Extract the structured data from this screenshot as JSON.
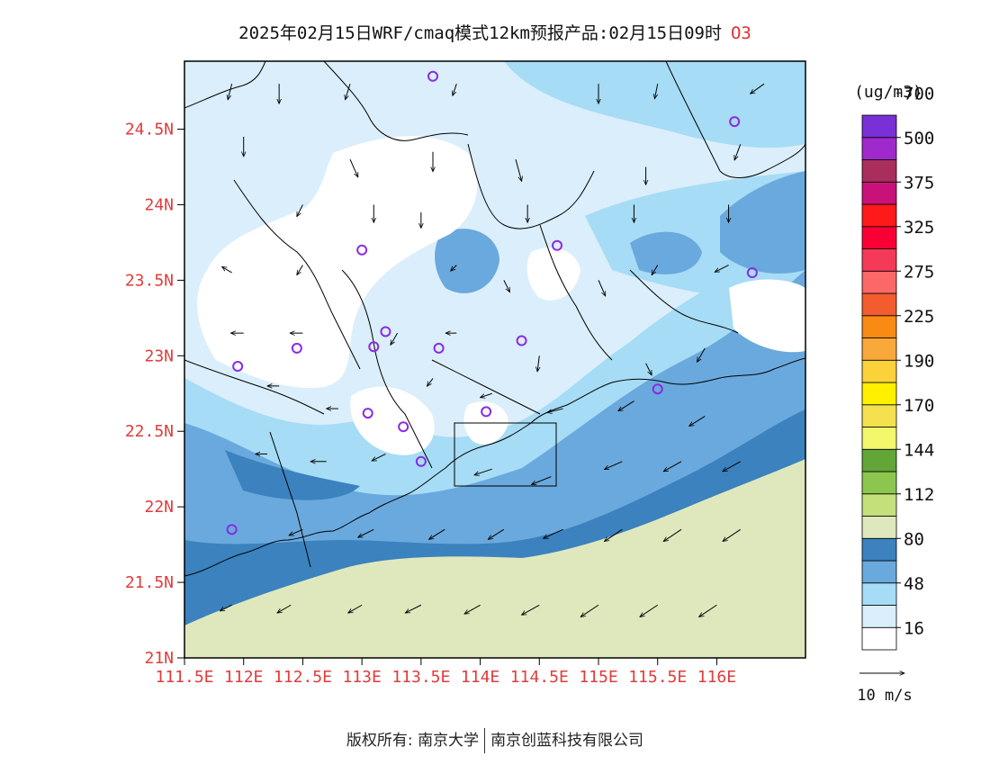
{
  "header": {
    "title": "2025年02月15日WRF/cmaq模式12km预报产品:02月15日09时",
    "pollutant": "O3"
  },
  "map": {
    "lon_range": [
      111.5,
      116.75
    ],
    "lat_range": [
      21,
      24.95
    ],
    "lat_ticks": [
      "21N",
      "21.5N",
      "22N",
      "22.5N",
      "23N",
      "23.5N",
      "24N",
      "24.5N"
    ],
    "lon_ticks": [
      "111.5E",
      "112E",
      "112.5E",
      "113E",
      "113.5E",
      "114E",
      "114.5E",
      "115E",
      "115.5E",
      "116E"
    ],
    "tick_label_color": "#e03c3c",
    "sea_color": "#dfe8bd",
    "station_marker_color": "#8a2be2",
    "stations": [
      [
        113.6,
        24.85
      ],
      [
        116.15,
        24.55
      ],
      [
        114.65,
        23.73
      ],
      [
        116.3,
        23.55
      ],
      [
        113.0,
        23.7
      ],
      [
        112.45,
        23.05
      ],
      [
        113.1,
        23.06
      ],
      [
        113.2,
        23.16
      ],
      [
        113.65,
        23.05
      ],
      [
        114.35,
        23.1
      ],
      [
        111.95,
        22.93
      ],
      [
        115.5,
        22.78
      ],
      [
        113.05,
        22.62
      ],
      [
        113.35,
        22.53
      ],
      [
        114.05,
        22.63
      ],
      [
        113.5,
        22.3
      ],
      [
        111.9,
        21.85
      ]
    ],
    "wind_vectors": [
      [
        111.9,
        24.8,
        -0.4,
        -1.6
      ],
      [
        112.3,
        24.8,
        0,
        -2
      ],
      [
        112.9,
        24.8,
        -0.5,
        -1.6
      ],
      [
        113.8,
        24.8,
        -0.4,
        -1.2
      ],
      [
        115.0,
        24.8,
        0,
        -2
      ],
      [
        115.5,
        24.8,
        -0.3,
        -1.5
      ],
      [
        116.4,
        24.8,
        -1.4,
        -1.0
      ],
      [
        112.0,
        24.45,
        0,
        -2
      ],
      [
        112.9,
        24.3,
        0.8,
        -1.8
      ],
      [
        113.6,
        24.35,
        0,
        -2
      ],
      [
        114.3,
        24.3,
        0.6,
        -2.2
      ],
      [
        115.4,
        24.25,
        0,
        -1.8
      ],
      [
        116.2,
        24.4,
        -0.6,
        -1.6
      ],
      [
        112.5,
        24.0,
        -0.6,
        -1.2
      ],
      [
        113.1,
        24.0,
        0,
        -1.8
      ],
      [
        113.5,
        23.95,
        0,
        -1.6
      ],
      [
        114.4,
        24.0,
        0,
        -1.8
      ],
      [
        115.3,
        24.0,
        0,
        -1.8
      ],
      [
        116.1,
        24.0,
        0,
        -1.8
      ],
      [
        111.9,
        23.55,
        -1,
        0.6
      ],
      [
        112.5,
        23.6,
        -0.6,
        -1.0
      ],
      [
        113.8,
        23.6,
        -0.6,
        -0.6
      ],
      [
        114.2,
        23.5,
        0.6,
        -1.2
      ],
      [
        115.0,
        23.5,
        0.7,
        -1.6
      ],
      [
        115.5,
        23.6,
        -0.6,
        -1.0
      ],
      [
        116.1,
        23.6,
        -1.4,
        -0.7
      ],
      [
        112.0,
        23.15,
        -1.3,
        0
      ],
      [
        112.5,
        23.15,
        -1.3,
        0
      ],
      [
        113.3,
        23.15,
        -0.7,
        -1.2
      ],
      [
        113.8,
        23.15,
        -1.1,
        0
      ],
      [
        114.5,
        23.0,
        -0.2,
        -1.6
      ],
      [
        115.4,
        22.95,
        0.6,
        -1.2
      ],
      [
        115.9,
        23.05,
        -0.8,
        -1.4
      ],
      [
        112.3,
        22.8,
        -1.2,
        0
      ],
      [
        112.8,
        22.65,
        -1.2,
        0
      ],
      [
        113.6,
        22.85,
        -0.6,
        -0.8
      ],
      [
        114.1,
        22.75,
        -1.2,
        -0.4
      ],
      [
        114.7,
        22.65,
        -1.6,
        -0.4
      ],
      [
        115.3,
        22.7,
        -1.6,
        -1.0
      ],
      [
        115.9,
        22.6,
        -1.6,
        -1.0
      ],
      [
        112.2,
        22.35,
        -1.2,
        0
      ],
      [
        112.7,
        22.3,
        -1.6,
        0
      ],
      [
        113.2,
        22.35,
        -1.4,
        -0.7
      ],
      [
        114.1,
        22.25,
        -1.8,
        -0.6
      ],
      [
        114.6,
        22.2,
        -2,
        -0.8
      ],
      [
        115.2,
        22.3,
        -1.8,
        -0.8
      ],
      [
        115.7,
        22.3,
        -1.8,
        -1.0
      ],
      [
        116.2,
        22.3,
        -1.8,
        -1.0
      ],
      [
        112.5,
        21.85,
        -1.4,
        -0.6
      ],
      [
        113.1,
        21.85,
        -1.6,
        -0.8
      ],
      [
        113.7,
        21.85,
        -1.6,
        -1.0
      ],
      [
        114.2,
        21.85,
        -1.6,
        -1.0
      ],
      [
        114.7,
        21.85,
        -2,
        -0.9
      ],
      [
        115.2,
        21.85,
        -1.8,
        -1.2
      ],
      [
        115.7,
        21.85,
        -1.8,
        -1.2
      ],
      [
        116.2,
        21.85,
        -1.8,
        -1.2
      ],
      [
        111.9,
        21.35,
        -1.2,
        -0.6
      ],
      [
        112.4,
        21.35,
        -1.4,
        -0.8
      ],
      [
        113.0,
        21.35,
        -1.4,
        -0.8
      ],
      [
        113.5,
        21.35,
        -1.6,
        -0.8
      ],
      [
        114.0,
        21.35,
        -1.6,
        -0.9
      ],
      [
        114.5,
        21.35,
        -1.8,
        -1.0
      ],
      [
        115.0,
        21.35,
        -1.8,
        -1.2
      ],
      [
        115.5,
        21.35,
        -1.8,
        -1.2
      ],
      [
        116.0,
        21.35,
        -1.8,
        -1.2
      ]
    ]
  },
  "legend": {
    "unit": "(ug/m3)",
    "labels": [
      "16",
      "48",
      "80",
      "112",
      "144",
      "170",
      "190",
      "225",
      "275",
      "325",
      "375",
      "500",
      "700"
    ],
    "colors": [
      "#ffffff",
      "#dbeefb",
      "#a6dcf5",
      "#6aa9dd",
      "#3b82be",
      "#dfe8bd",
      "#c3e07a",
      "#8dc64e",
      "#62a637",
      "#f2f76b",
      "#f5e050",
      "#fff000",
      "#fcd23a",
      "#f9a83a",
      "#f98a14",
      "#f25c2e",
      "#fc6868",
      "#f43a58",
      "#f90035",
      "#ff1a1a",
      "#c8127a",
      "#aa2e5c",
      "#a029cc",
      "#7b2fd6"
    ],
    "wind_ref": "10 m/s"
  },
  "footer": {
    "copyright_label": "版权所有:",
    "org1": "南京大学",
    "org2": "南京创蓝科技有限公司"
  }
}
